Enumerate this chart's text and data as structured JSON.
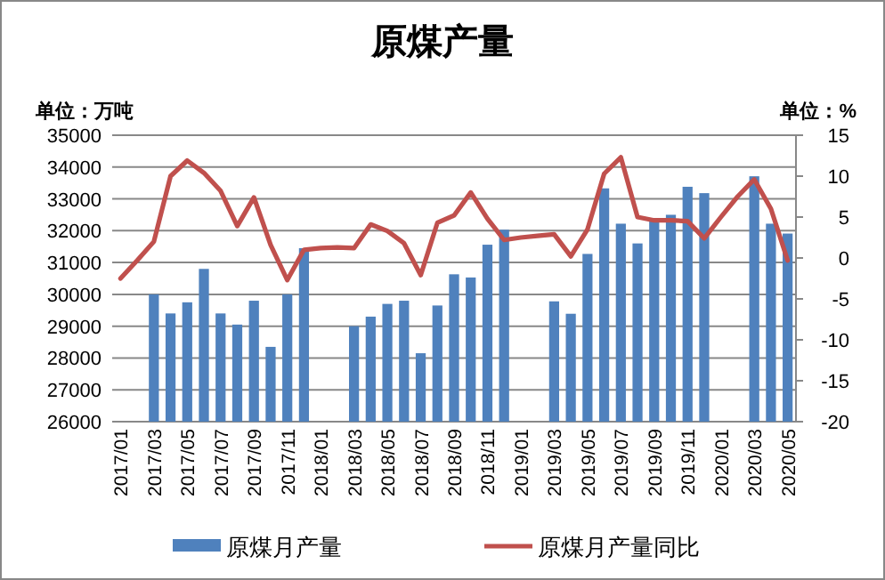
{
  "chart_data": {
    "type": "bar",
    "title": "原煤产量",
    "ylabel": "单位：万吨",
    "y2label": "单位：%",
    "categories": [
      "2017/01",
      null,
      "2017/03",
      null,
      "2017/05",
      null,
      "2017/07",
      null,
      "2017/09",
      null,
      "2017/11",
      null,
      "2018/01",
      null,
      "2018/03",
      null,
      "2018/05",
      null,
      "2018/07",
      null,
      "2018/09",
      null,
      "2018/11",
      null,
      "2019/01",
      null,
      "2019/03",
      null,
      "2019/05",
      null,
      "2019/07",
      null,
      "2019/09",
      null,
      "2019/11",
      null,
      "2020/01",
      null,
      "2020/03",
      null,
      "2020/05"
    ],
    "series": [
      {
        "name": "原煤月产量",
        "color": "#4f81bd",
        "values": [
          null,
          null,
          30000,
          29400,
          29750,
          30800,
          29400,
          29050,
          29800,
          28350,
          30000,
          31450,
          null,
          null,
          29000,
          29300,
          29700,
          29800,
          28150,
          29650,
          30630,
          30530,
          31560,
          32030,
          null,
          null,
          29780,
          29390,
          31270,
          33330,
          32220,
          31600,
          32370,
          32500,
          33380,
          33180,
          null,
          null,
          33710,
          32220,
          31910
        ]
      },
      {
        "name": "原煤月产量同比",
        "type": "line",
        "axis": "y2",
        "color": "#c0504d",
        "values": [
          -2.5,
          -0.3,
          2.0,
          10.0,
          11.9,
          10.4,
          8.2,
          3.9,
          7.4,
          1.6,
          -2.7,
          1.0,
          1.2,
          1.3,
          1.2,
          4.1,
          3.3,
          1.8,
          -2.1,
          4.3,
          5.2,
          8.0,
          4.8,
          2.2,
          2.5,
          2.7,
          2.9,
          0.2,
          3.5,
          10.3,
          12.3,
          5.0,
          4.6,
          4.6,
          4.5,
          2.4,
          5.0,
          7.5,
          9.6,
          6.0,
          -0.3
        ]
      }
    ],
    "ylim": [
      26000,
      35000
    ],
    "yticks": [
      26000,
      27000,
      28000,
      29000,
      30000,
      31000,
      32000,
      33000,
      34000,
      35000
    ],
    "y2lim": [
      -20,
      15
    ],
    "y2ticks": [
      -20,
      -15,
      -10,
      -5,
      0,
      5,
      10,
      15
    ],
    "grid": "y",
    "legend": "bottom"
  }
}
